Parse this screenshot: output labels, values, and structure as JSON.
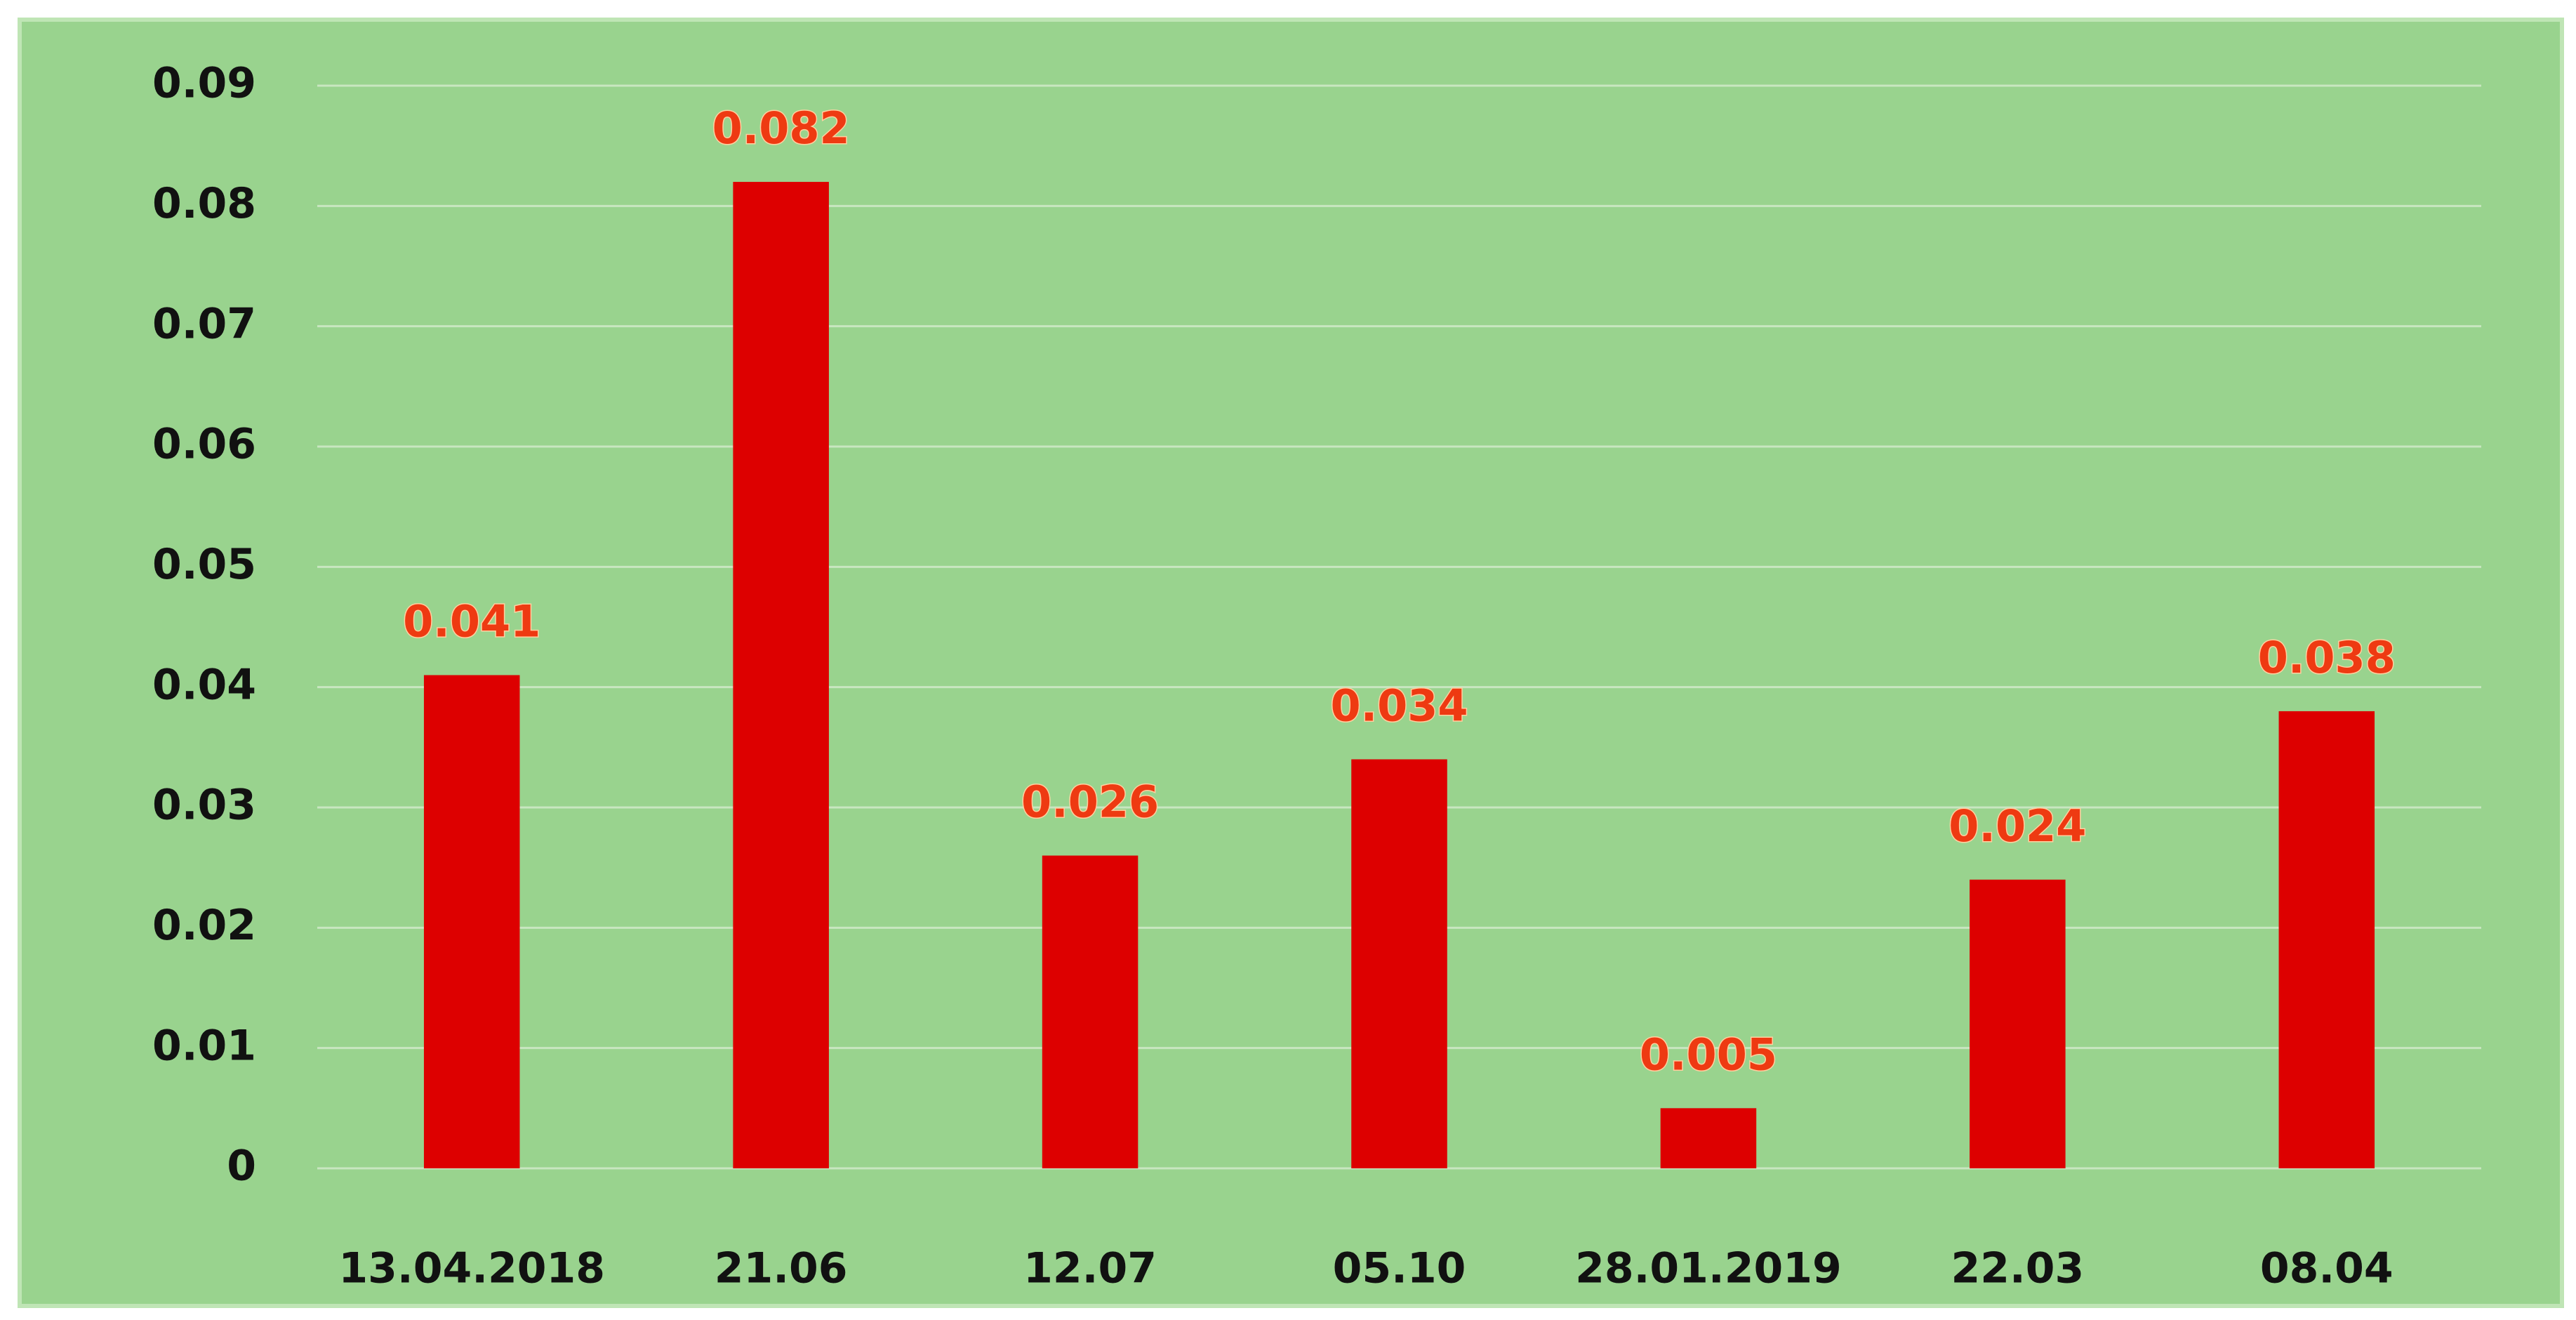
{
  "chart_data": {
    "type": "bar",
    "categories": [
      "13.04.2018",
      "21.06",
      "12.07",
      "05.10",
      "28.01.2019",
      "22.03",
      "08.04"
    ],
    "values": [
      0.041,
      0.082,
      0.026,
      0.034,
      0.005,
      0.024,
      0.038
    ],
    "color": "#dd0000",
    "ylim": [
      0,
      0.09
    ],
    "yticks": [
      0,
      0.01,
      0.02,
      0.03,
      0.04,
      0.05,
      0.06,
      0.07,
      0.08,
      0.09
    ],
    "grid": true
  }
}
